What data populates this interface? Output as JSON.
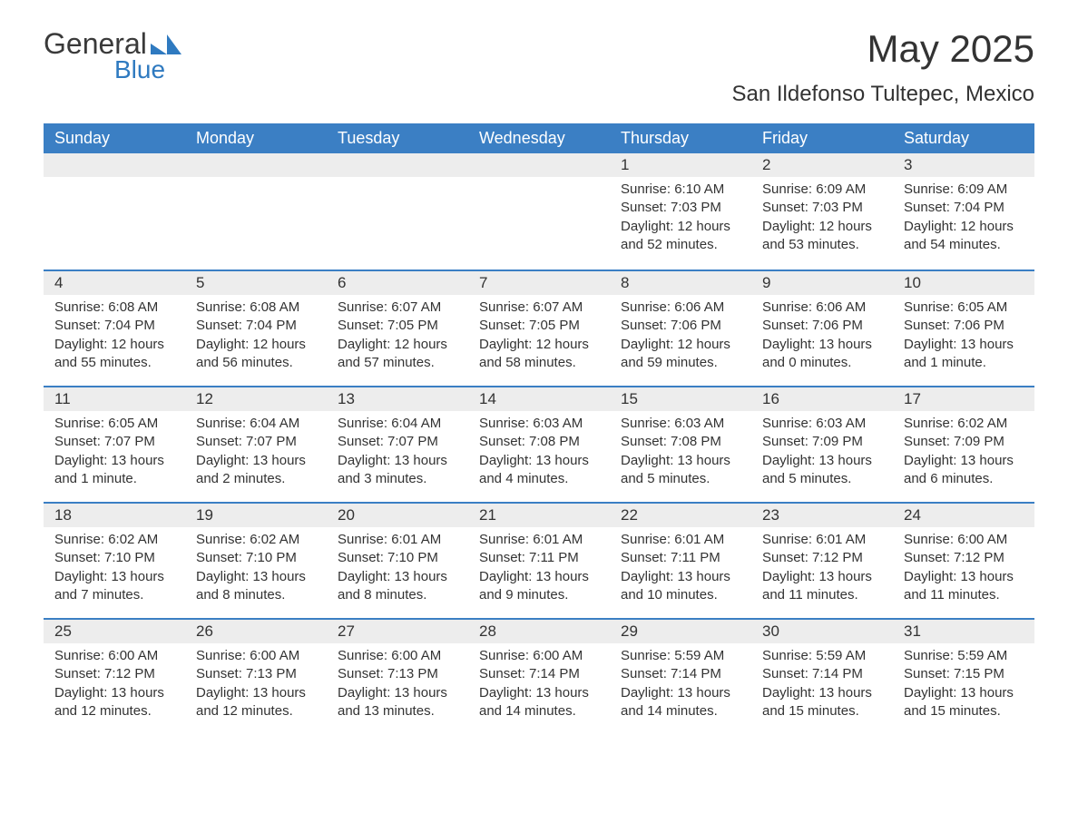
{
  "brand": {
    "word1": "General",
    "word2": "Blue",
    "accent_color": "#2f7ac0"
  },
  "title": "May 2025",
  "location": "San Ildefonso Tultepec, Mexico",
  "header_bg": "#3b7fc4",
  "header_fg": "#ffffff",
  "daynum_bg": "#ededed",
  "border_color": "#3b7fc4",
  "text_color": "#333333",
  "day_names": [
    "Sunday",
    "Monday",
    "Tuesday",
    "Wednesday",
    "Thursday",
    "Friday",
    "Saturday"
  ],
  "weeks": [
    [
      null,
      null,
      null,
      null,
      {
        "n": "1",
        "sr": "Sunrise: 6:10 AM",
        "ss": "Sunset: 7:03 PM",
        "dl": "Daylight: 12 hours and 52 minutes."
      },
      {
        "n": "2",
        "sr": "Sunrise: 6:09 AM",
        "ss": "Sunset: 7:03 PM",
        "dl": "Daylight: 12 hours and 53 minutes."
      },
      {
        "n": "3",
        "sr": "Sunrise: 6:09 AM",
        "ss": "Sunset: 7:04 PM",
        "dl": "Daylight: 12 hours and 54 minutes."
      }
    ],
    [
      {
        "n": "4",
        "sr": "Sunrise: 6:08 AM",
        "ss": "Sunset: 7:04 PM",
        "dl": "Daylight: 12 hours and 55 minutes."
      },
      {
        "n": "5",
        "sr": "Sunrise: 6:08 AM",
        "ss": "Sunset: 7:04 PM",
        "dl": "Daylight: 12 hours and 56 minutes."
      },
      {
        "n": "6",
        "sr": "Sunrise: 6:07 AM",
        "ss": "Sunset: 7:05 PM",
        "dl": "Daylight: 12 hours and 57 minutes."
      },
      {
        "n": "7",
        "sr": "Sunrise: 6:07 AM",
        "ss": "Sunset: 7:05 PM",
        "dl": "Daylight: 12 hours and 58 minutes."
      },
      {
        "n": "8",
        "sr": "Sunrise: 6:06 AM",
        "ss": "Sunset: 7:06 PM",
        "dl": "Daylight: 12 hours and 59 minutes."
      },
      {
        "n": "9",
        "sr": "Sunrise: 6:06 AM",
        "ss": "Sunset: 7:06 PM",
        "dl": "Daylight: 13 hours and 0 minutes."
      },
      {
        "n": "10",
        "sr": "Sunrise: 6:05 AM",
        "ss": "Sunset: 7:06 PM",
        "dl": "Daylight: 13 hours and 1 minute."
      }
    ],
    [
      {
        "n": "11",
        "sr": "Sunrise: 6:05 AM",
        "ss": "Sunset: 7:07 PM",
        "dl": "Daylight: 13 hours and 1 minute."
      },
      {
        "n": "12",
        "sr": "Sunrise: 6:04 AM",
        "ss": "Sunset: 7:07 PM",
        "dl": "Daylight: 13 hours and 2 minutes."
      },
      {
        "n": "13",
        "sr": "Sunrise: 6:04 AM",
        "ss": "Sunset: 7:07 PM",
        "dl": "Daylight: 13 hours and 3 minutes."
      },
      {
        "n": "14",
        "sr": "Sunrise: 6:03 AM",
        "ss": "Sunset: 7:08 PM",
        "dl": "Daylight: 13 hours and 4 minutes."
      },
      {
        "n": "15",
        "sr": "Sunrise: 6:03 AM",
        "ss": "Sunset: 7:08 PM",
        "dl": "Daylight: 13 hours and 5 minutes."
      },
      {
        "n": "16",
        "sr": "Sunrise: 6:03 AM",
        "ss": "Sunset: 7:09 PM",
        "dl": "Daylight: 13 hours and 5 minutes."
      },
      {
        "n": "17",
        "sr": "Sunrise: 6:02 AM",
        "ss": "Sunset: 7:09 PM",
        "dl": "Daylight: 13 hours and 6 minutes."
      }
    ],
    [
      {
        "n": "18",
        "sr": "Sunrise: 6:02 AM",
        "ss": "Sunset: 7:10 PM",
        "dl": "Daylight: 13 hours and 7 minutes."
      },
      {
        "n": "19",
        "sr": "Sunrise: 6:02 AM",
        "ss": "Sunset: 7:10 PM",
        "dl": "Daylight: 13 hours and 8 minutes."
      },
      {
        "n": "20",
        "sr": "Sunrise: 6:01 AM",
        "ss": "Sunset: 7:10 PM",
        "dl": "Daylight: 13 hours and 8 minutes."
      },
      {
        "n": "21",
        "sr": "Sunrise: 6:01 AM",
        "ss": "Sunset: 7:11 PM",
        "dl": "Daylight: 13 hours and 9 minutes."
      },
      {
        "n": "22",
        "sr": "Sunrise: 6:01 AM",
        "ss": "Sunset: 7:11 PM",
        "dl": "Daylight: 13 hours and 10 minutes."
      },
      {
        "n": "23",
        "sr": "Sunrise: 6:01 AM",
        "ss": "Sunset: 7:12 PM",
        "dl": "Daylight: 13 hours and 11 minutes."
      },
      {
        "n": "24",
        "sr": "Sunrise: 6:00 AM",
        "ss": "Sunset: 7:12 PM",
        "dl": "Daylight: 13 hours and 11 minutes."
      }
    ],
    [
      {
        "n": "25",
        "sr": "Sunrise: 6:00 AM",
        "ss": "Sunset: 7:12 PM",
        "dl": "Daylight: 13 hours and 12 minutes."
      },
      {
        "n": "26",
        "sr": "Sunrise: 6:00 AM",
        "ss": "Sunset: 7:13 PM",
        "dl": "Daylight: 13 hours and 12 minutes."
      },
      {
        "n": "27",
        "sr": "Sunrise: 6:00 AM",
        "ss": "Sunset: 7:13 PM",
        "dl": "Daylight: 13 hours and 13 minutes."
      },
      {
        "n": "28",
        "sr": "Sunrise: 6:00 AM",
        "ss": "Sunset: 7:14 PM",
        "dl": "Daylight: 13 hours and 14 minutes."
      },
      {
        "n": "29",
        "sr": "Sunrise: 5:59 AM",
        "ss": "Sunset: 7:14 PM",
        "dl": "Daylight: 13 hours and 14 minutes."
      },
      {
        "n": "30",
        "sr": "Sunrise: 5:59 AM",
        "ss": "Sunset: 7:14 PM",
        "dl": "Daylight: 13 hours and 15 minutes."
      },
      {
        "n": "31",
        "sr": "Sunrise: 5:59 AM",
        "ss": "Sunset: 7:15 PM",
        "dl": "Daylight: 13 hours and 15 minutes."
      }
    ]
  ]
}
